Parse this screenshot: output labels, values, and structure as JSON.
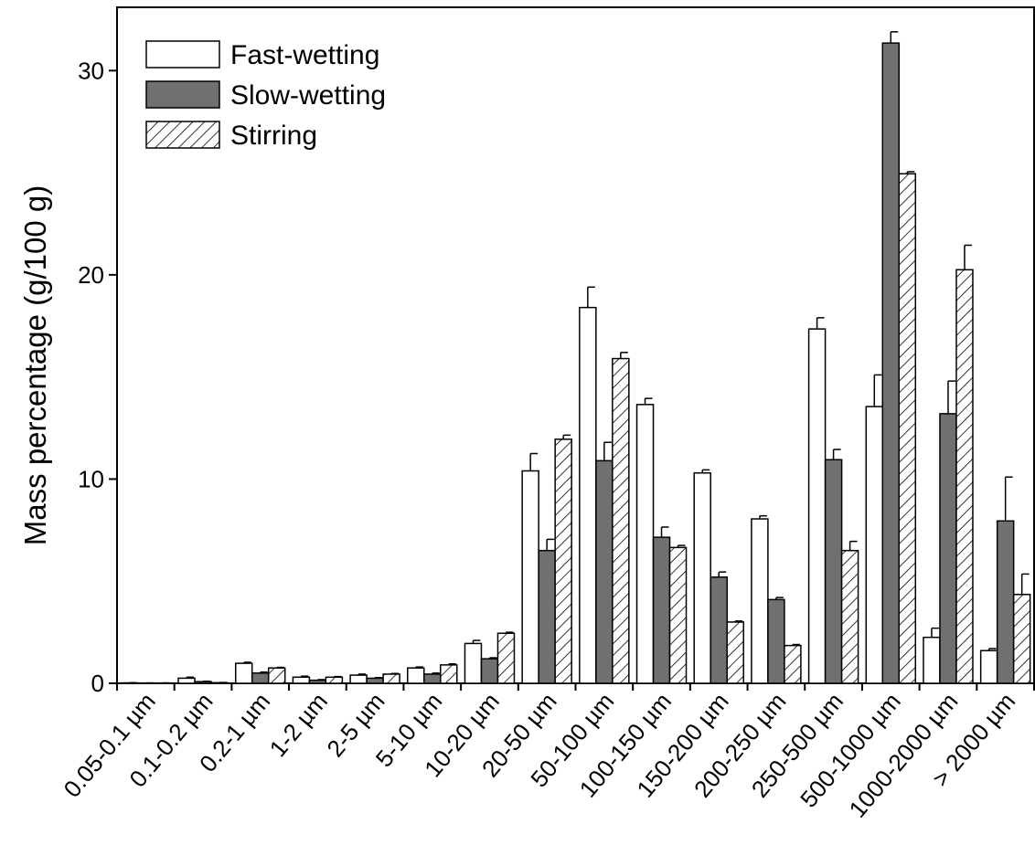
{
  "chart_data": {
    "type": "bar",
    "y_label": "Mass percentage (g/100 g)",
    "categories": [
      "0.05-0.1 µm",
      "0.1-0.2 µm",
      "0.2-1 µm",
      "1-2 µm",
      "2-5 µm",
      "5-10 µm",
      "10-20 µm",
      "20-50 µm",
      "50-100 µm",
      "100-150 µm",
      "150-200 µm",
      "200-250 µm",
      "250-500 µm",
      "500-1000 µm",
      "1000-2000 µm",
      "> 2000 µm"
    ],
    "series": [
      {
        "name": "Fast-wetting",
        "color": "#ffffff",
        "hatch": false,
        "values": [
          0.02,
          0.25,
          0.98,
          0.3,
          0.4,
          0.75,
          1.95,
          10.4,
          18.4,
          13.65,
          10.3,
          8.05,
          17.35,
          13.55,
          2.25,
          1.6
        ],
        "errors": [
          0.01,
          0.05,
          0.05,
          0.05,
          0.05,
          0.05,
          0.15,
          0.85,
          1.0,
          0.3,
          0.15,
          0.15,
          0.55,
          1.55,
          0.45,
          0.1
        ]
      },
      {
        "name": "Slow-wetting",
        "color": "#707070",
        "hatch": false,
        "values": [
          0.01,
          0.08,
          0.5,
          0.15,
          0.25,
          0.45,
          1.2,
          6.5,
          10.9,
          7.15,
          5.2,
          4.1,
          10.95,
          31.35,
          13.2,
          7.95
        ],
        "errors": [
          0.01,
          0.02,
          0.05,
          0.03,
          0.03,
          0.05,
          0.05,
          0.55,
          0.9,
          0.5,
          0.25,
          0.1,
          0.5,
          0.55,
          1.6,
          2.15
        ]
      },
      {
        "name": "Stirring",
        "color": "#ffffff",
        "hatch": true,
        "values": [
          0.01,
          0.03,
          0.75,
          0.3,
          0.45,
          0.9,
          2.45,
          11.95,
          15.9,
          6.65,
          3.0,
          1.85,
          6.5,
          24.95,
          20.25,
          4.35
        ],
        "errors": [
          0.01,
          0.01,
          0.03,
          0.03,
          0.03,
          0.05,
          0.05,
          0.2,
          0.3,
          0.1,
          0.05,
          0.05,
          0.45,
          0.1,
          1.2,
          1.0
        ]
      }
    ],
    "ylim": [
      0,
      33.1
    ],
    "yticks": [
      0,
      10,
      20,
      30
    ],
    "legend": "upper-left"
  }
}
